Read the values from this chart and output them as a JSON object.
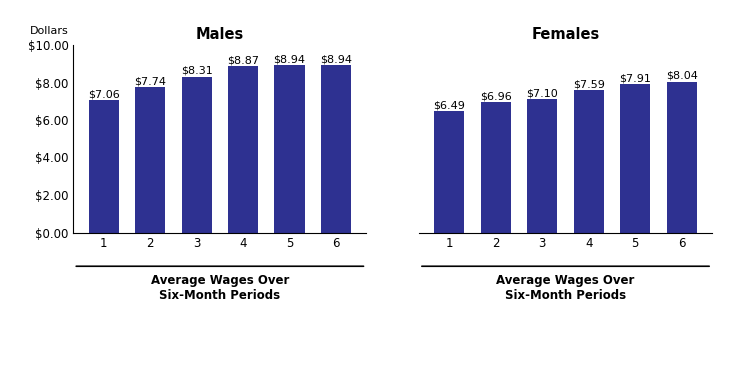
{
  "males_values": [
    7.06,
    7.74,
    8.31,
    8.87,
    8.94,
    8.94
  ],
  "females_values": [
    6.49,
    6.96,
    7.1,
    7.59,
    7.91,
    8.04
  ],
  "males_labels": [
    "$7.06",
    "$7.74",
    "$8.31",
    "$8.87",
    "$8.94",
    "$8.94"
  ],
  "females_labels": [
    "$6.49",
    "$6.96",
    "$7.10",
    "$7.59",
    "$7.91",
    "$8.04"
  ],
  "x_ticks": [
    1,
    2,
    3,
    4,
    5,
    6
  ],
  "bar_color": "#2E3191",
  "males_title": "Males",
  "females_title": "Females",
  "ylabel_text": "Dollars",
  "xlabel_text": "Average Wages Over\nSix-Month Periods",
  "ylim": [
    0,
    10.0
  ],
  "yticks": [
    0.0,
    2.0,
    4.0,
    6.0,
    8.0,
    10.0
  ],
  "ytick_labels": [
    "$0.00",
    "$2.00",
    "$4.00",
    "$6.00",
    "$8.00",
    "$10.00"
  ],
  "bar_width": 0.65,
  "label_fontsize": 8,
  "title_fontsize": 10.5,
  "tick_fontsize": 8.5,
  "ylabel_fontsize": 8,
  "xlabel_fontsize": 8.5
}
